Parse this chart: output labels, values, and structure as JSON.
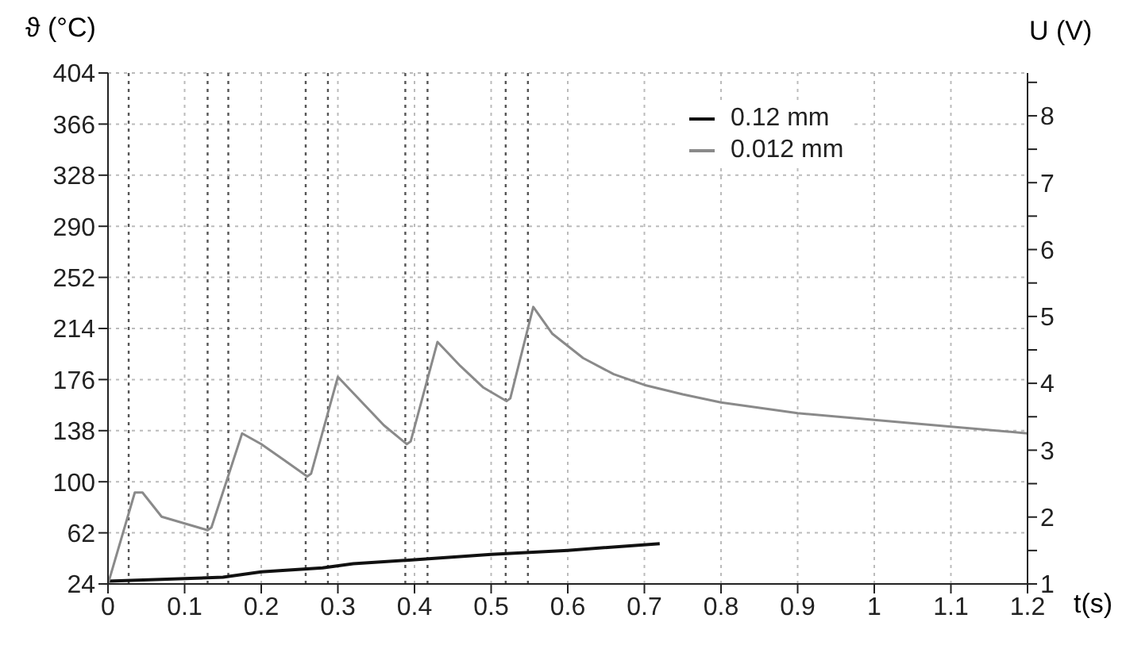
{
  "chart_data": {
    "type": "line",
    "xlabel": "t(s)",
    "ylabel": "ϑ (°C)",
    "y2label": "U (V)",
    "xlim": [
      0,
      1.2
    ],
    "xticks": [
      0,
      0.1,
      0.2,
      0.3,
      0.4,
      0.5,
      0.6,
      0.7,
      0.8,
      0.9,
      1,
      1.1,
      1.2
    ],
    "ylim": [
      24,
      404
    ],
    "yticks": [
      24,
      62,
      100,
      138,
      176,
      214,
      252,
      290,
      328,
      366,
      404
    ],
    "y2lim": [
      1,
      8.64
    ],
    "y2ticks": [
      1,
      {
        "value": 1.5,
        "label": null
      },
      2,
      {
        "value": 2.5,
        "label": null
      },
      3,
      {
        "value": 3.5,
        "label": null
      },
      4,
      {
        "value": 4.5,
        "label": null
      },
      5,
      {
        "value": 5.5,
        "label": null
      },
      6,
      {
        "value": 6.5,
        "label": null
      },
      7,
      {
        "value": 7.5,
        "label": null
      },
      8,
      {
        "value": 8.5,
        "label": null
      }
    ],
    "grid": true,
    "legend": "top right",
    "marker": "none",
    "line_style": "solid",
    "series": [
      {
        "name": "0.12 mm",
        "color": "#111111",
        "x": [
          0,
          0.1,
          0.15,
          0.2,
          0.28,
          0.32,
          0.4,
          0.5,
          0.6,
          0.72
        ],
        "values": [
          26,
          28,
          29,
          33,
          36,
          39,
          42,
          46,
          49,
          54
        ]
      },
      {
        "name": "0.012 mm",
        "color": "#8a8a8a",
        "x": [
          0,
          0.035,
          0.045,
          0.07,
          0.1,
          0.13,
          0.135,
          0.175,
          0.2,
          0.23,
          0.26,
          0.265,
          0.3,
          0.33,
          0.36,
          0.39,
          0.395,
          0.43,
          0.46,
          0.49,
          0.52,
          0.525,
          0.555,
          0.58,
          0.62,
          0.66,
          0.7,
          0.75,
          0.8,
          0.9,
          1,
          1.1,
          1.2
        ],
        "values": [
          24,
          92,
          92,
          74,
          69,
          64,
          66,
          136,
          128,
          116,
          104,
          106,
          178,
          160,
          142,
          128,
          130,
          204,
          186,
          170,
          160,
          162,
          230,
          210,
          192,
          180,
          172,
          165,
          159,
          151,
          146,
          141,
          136
        ]
      }
    ],
    "ref_lines": [
      {
        "axis": "x",
        "value": 0.027,
        "color": "#555555",
        "line_style": "dotted"
      },
      {
        "axis": "x",
        "value": 0.13,
        "color": "#555555",
        "line_style": "dotted"
      },
      {
        "axis": "x",
        "value": 0.157,
        "color": "#555555",
        "line_style": "dotted"
      },
      {
        "axis": "x",
        "value": 0.258,
        "color": "#555555",
        "line_style": "dotted"
      },
      {
        "axis": "x",
        "value": 0.287,
        "color": "#555555",
        "line_style": "dotted"
      },
      {
        "axis": "x",
        "value": 0.388,
        "color": "#555555",
        "line_style": "dotted"
      },
      {
        "axis": "x",
        "value": 0.417,
        "color": "#555555",
        "line_style": "dotted"
      },
      {
        "axis": "x",
        "value": 0.519,
        "color": "#555555",
        "line_style": "dotted"
      },
      {
        "axis": "x",
        "value": 0.548,
        "color": "#555555",
        "line_style": "dotted"
      }
    ]
  }
}
